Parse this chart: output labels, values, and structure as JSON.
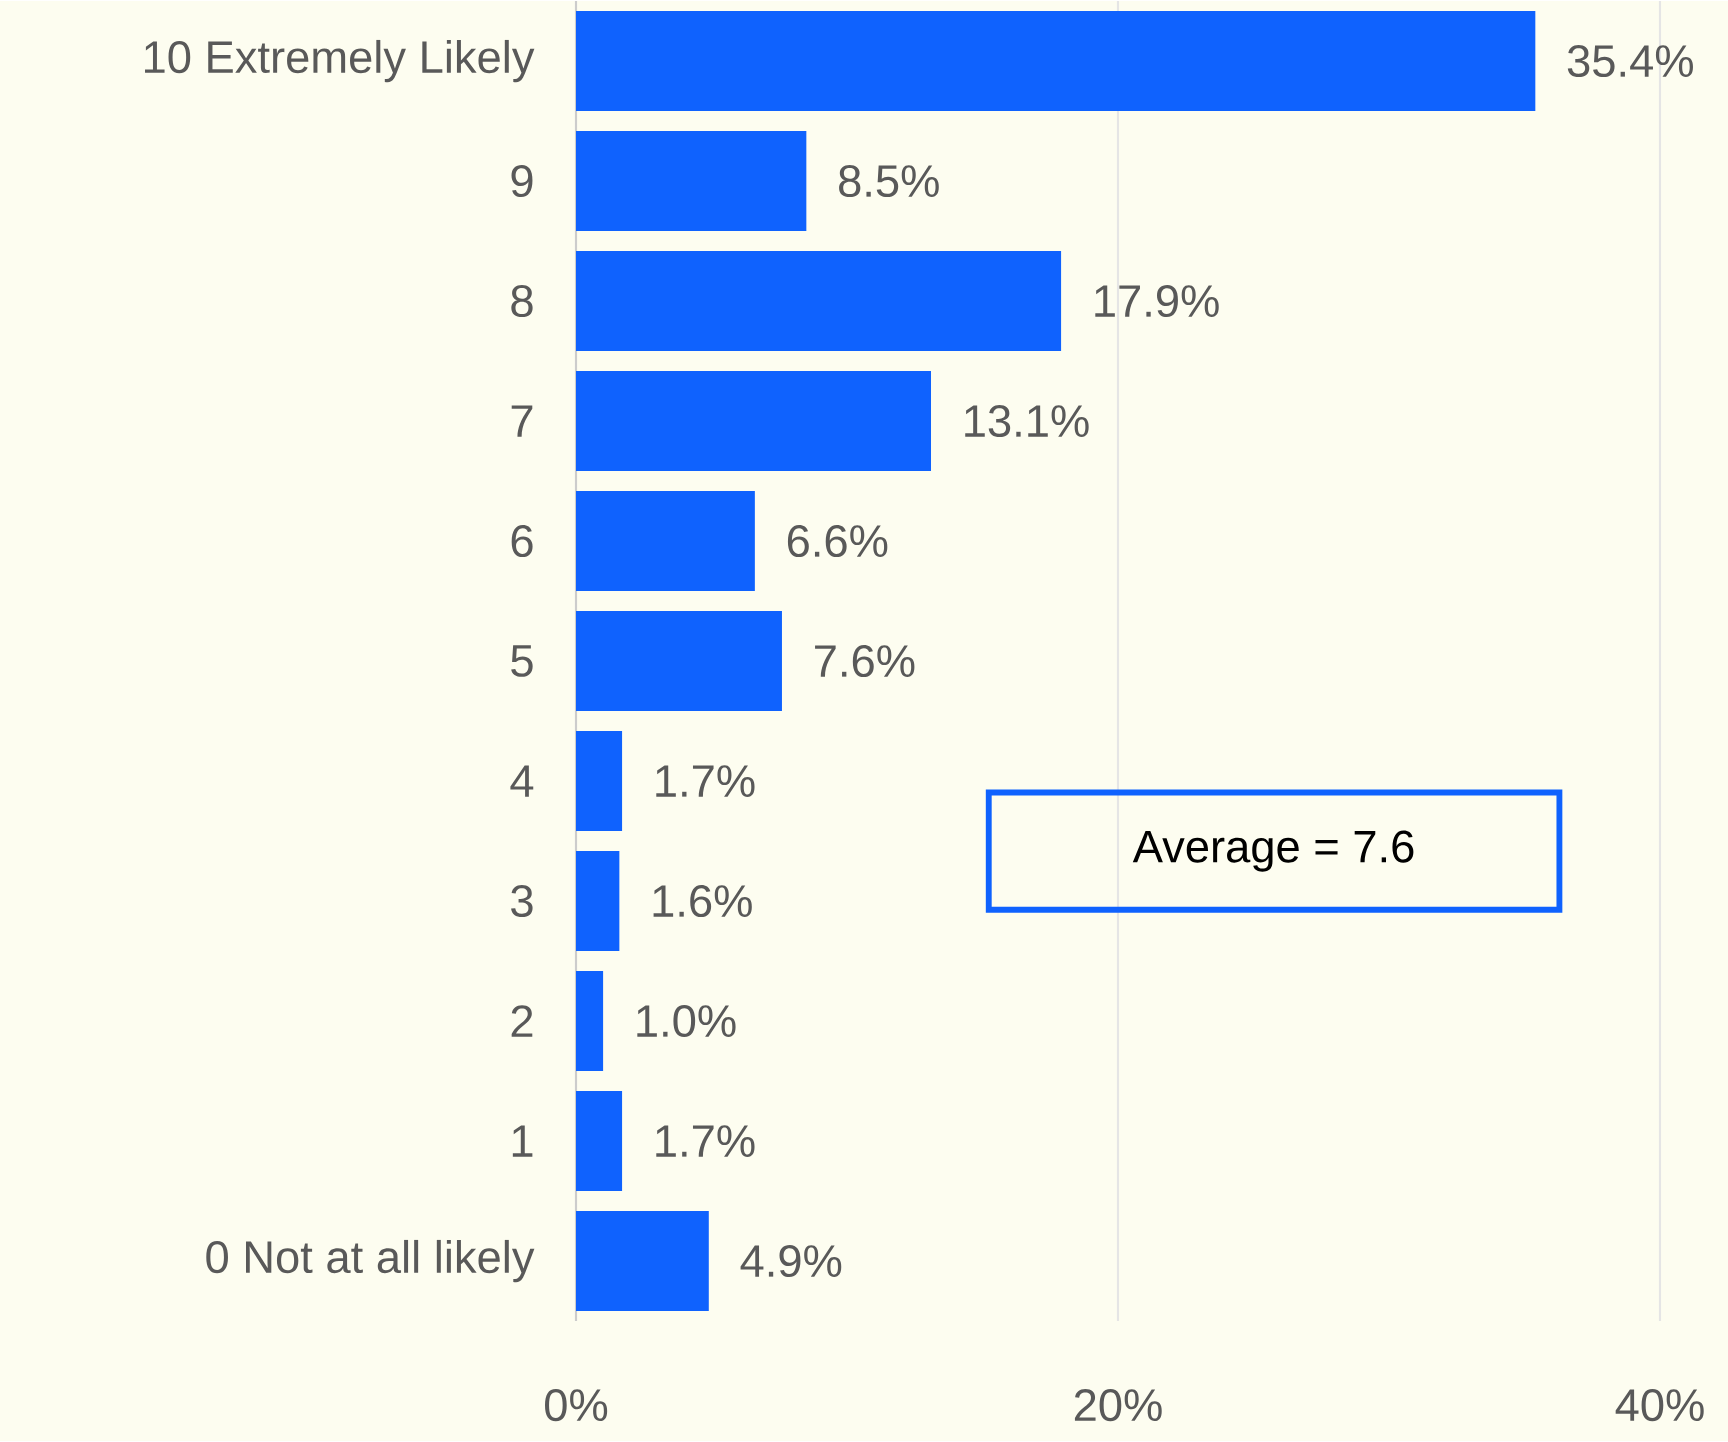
{
  "chart_data": {
    "type": "bar",
    "orientation": "horizontal",
    "categories": [
      "10 Extremely Likely",
      "9",
      "8",
      "7",
      "6",
      "5",
      "4",
      "3",
      "2",
      "1",
      "0 Not at all likely"
    ],
    "values": [
      35.4,
      8.5,
      17.9,
      13.1,
      6.6,
      7.6,
      1.7,
      1.6,
      1.0,
      1.7,
      4.9
    ],
    "value_labels": [
      "35.4%",
      "8.5%",
      "17.9%",
      "13.1%",
      "6.6%",
      "7.6%",
      "1.7%",
      "1.6%",
      "1.0%",
      "1.7%",
      "4.9%"
    ],
    "color": "#0f62fe",
    "xlim": [
      0,
      40
    ],
    "xticks": [
      {
        "value": 0,
        "label": "0%"
      },
      {
        "value": 20,
        "label": "20%"
      },
      {
        "value": 40,
        "label": "40%"
      }
    ],
    "grid": "x",
    "annotations": [
      "Average = 7.6"
    ]
  }
}
